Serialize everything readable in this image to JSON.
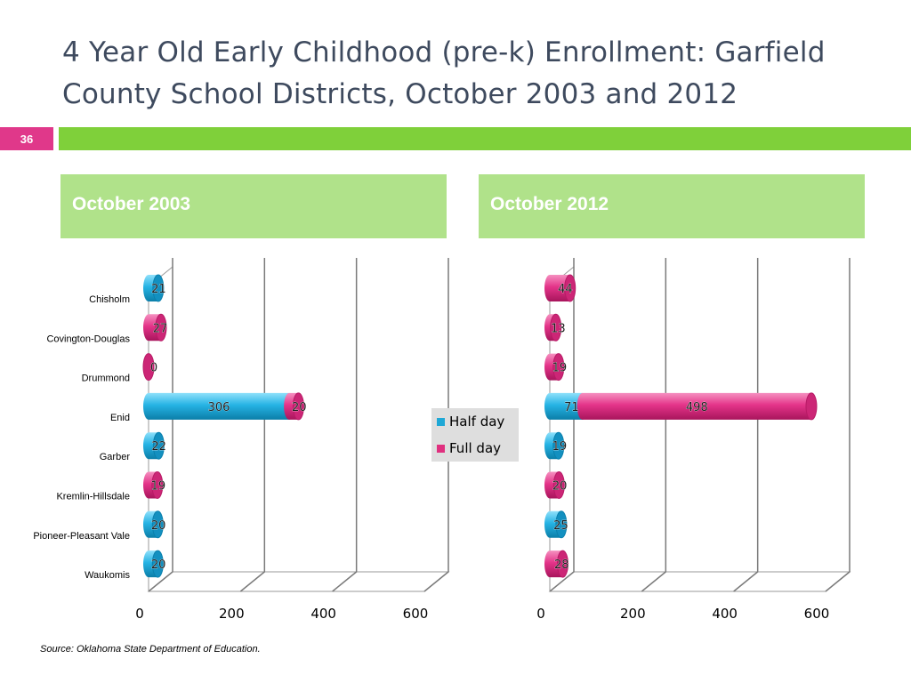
{
  "slide": {
    "title": "4 Year Old Early Childhood (pre-k) Enrollment: Garfield County School Districts, October 2003 and 2012",
    "page_number": "36",
    "source": "Source:  Oklahoma State Department of Education."
  },
  "panels": {
    "left_header": "October 2003",
    "right_header": "October 2012"
  },
  "legend": {
    "half_day": "Half day",
    "full_day": "Full day"
  },
  "colors": {
    "half_day": "#1fa8d6",
    "full_day": "#e0307f",
    "accent_green": "#7fd03a",
    "header_green": "#b0e28a",
    "badge_pink": "#e0388a",
    "title": "#3e4a5e"
  },
  "chart_data": [
    {
      "type": "bar",
      "orientation": "horizontal",
      "stacked": true,
      "title": "October 2003",
      "categories": [
        "Chisholm",
        "Covington-Douglas",
        "Drummond",
        "Enid",
        "Garber",
        "Kremlin-Hillsdale",
        "Pioneer-Pleasant Vale",
        "Waukomis"
      ],
      "series": [
        {
          "name": "Half day",
          "values": [
            21,
            0,
            0,
            306,
            22,
            0,
            20,
            20
          ]
        },
        {
          "name": "Full day",
          "values": [
            0,
            27,
            0,
            20,
            0,
            19,
            0,
            0
          ]
        }
      ],
      "data_labels": [
        {
          "category": "Chisholm",
          "series": "Half day",
          "text": "21"
        },
        {
          "category": "Covington-Douglas",
          "series": "Full day",
          "text": "27"
        },
        {
          "category": "Drummond",
          "series": "Full day",
          "text": "0"
        },
        {
          "category": "Enid",
          "series": "Half day",
          "text": "306"
        },
        {
          "category": "Enid",
          "series": "Full day",
          "text": "20"
        },
        {
          "category": "Garber",
          "series": "Half day",
          "text": "22"
        },
        {
          "category": "Kremlin-Hillsdale",
          "series": "Full day",
          "text": "19"
        },
        {
          "category": "Pioneer-Pleasant Vale",
          "series": "Half day",
          "text": "20"
        },
        {
          "category": "Waukomis",
          "series": "Half day",
          "text": "20"
        }
      ],
      "x_ticks": [
        "0",
        "200",
        "400",
        "600"
      ],
      "xlim": [
        0,
        600
      ],
      "grid": true
    },
    {
      "type": "bar",
      "orientation": "horizontal",
      "stacked": true,
      "title": "October 2012",
      "categories": [
        "Chisholm",
        "Covington-Douglas",
        "Drummond",
        "Enid",
        "Garber",
        "Kremlin-Hillsdale",
        "Pioneer-Pleasant Vale",
        "Waukomis"
      ],
      "series": [
        {
          "name": "Half day",
          "values": [
            0,
            0,
            0,
            71,
            19,
            0,
            25,
            0
          ]
        },
        {
          "name": "Full day",
          "values": [
            44,
            13,
            19,
            498,
            0,
            20,
            0,
            28
          ]
        }
      ],
      "data_labels": [
        {
          "category": "Chisholm",
          "series": "Full day",
          "text": "44"
        },
        {
          "category": "Covington-Douglas",
          "series": "Full day",
          "text": "13"
        },
        {
          "category": "Drummond",
          "series": "Full day",
          "text": "19"
        },
        {
          "category": "Enid",
          "series": "Half day",
          "text": "71"
        },
        {
          "category": "Enid",
          "series": "Full day",
          "text": "498"
        },
        {
          "category": "Garber",
          "series": "Half day",
          "text": "19"
        },
        {
          "category": "Kremlin-Hillsdale",
          "series": "Full day",
          "text": "20"
        },
        {
          "category": "Pioneer-Pleasant Vale",
          "series": "Half day",
          "text": "25"
        },
        {
          "category": "Waukomis",
          "series": "Full day",
          "text": "28"
        }
      ],
      "x_ticks": [
        "0",
        "200",
        "400",
        "600"
      ],
      "xlim": [
        0,
        600
      ],
      "grid": true
    }
  ]
}
